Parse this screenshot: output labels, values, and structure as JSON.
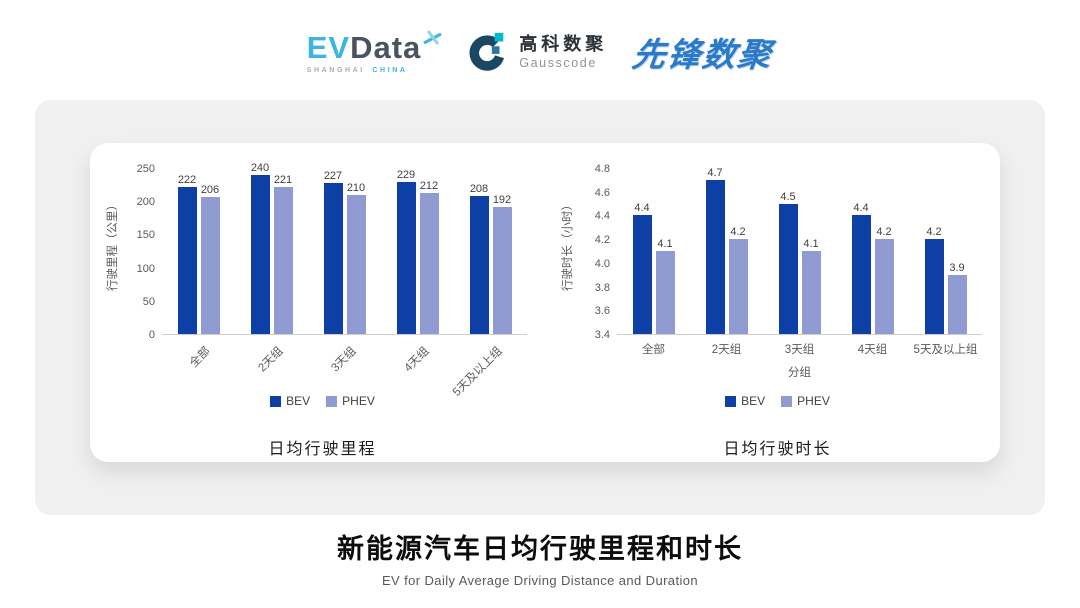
{
  "header": {
    "evdata": {
      "part1": "EV",
      "part2": "Data",
      "sub1": "SHANGHAI",
      "sub2": "CHINA"
    },
    "gausscode": {
      "cn": "高科数聚",
      "en": "Gausscode"
    },
    "xianfeng": {
      "text": "先锋数聚"
    }
  },
  "colors": {
    "bev": "#0E3FA5",
    "phev": "#8F9BD1",
    "axis_text": "#595959",
    "value_text": "#3F3F3F",
    "evdata_cyan": "#3CB4E5",
    "evdata_dark": "#49525F",
    "gauss_dark": "#1C4764",
    "gauss_cyan": "#00BCD0",
    "gauss_mid": "#2E75A8",
    "xianfeng_blue": "#2B79C9"
  },
  "chart_data": [
    {
      "type": "bar",
      "title": "日均行驶里程",
      "ylabel": "行驶里程（公里）",
      "xlabel": "",
      "categories": [
        "全部",
        "2天组",
        "3天组",
        "4天组",
        "5天及以上组"
      ],
      "series": [
        {
          "name": "BEV",
          "values": [
            222,
            240,
            227,
            229,
            208
          ]
        },
        {
          "name": "PHEV",
          "values": [
            206,
            221,
            210,
            212,
            192
          ]
        }
      ],
      "ylim": [
        0,
        250
      ],
      "yticks": [
        0,
        50,
        100,
        150,
        200,
        250
      ],
      "ytick_decimals": 0,
      "value_decimals": 0,
      "x_label_rotation": -45,
      "grid": false,
      "legend_position": "bottom"
    },
    {
      "type": "bar",
      "title": "日均行驶时长",
      "ylabel": "行驶时长（小时）",
      "xlabel": "分组",
      "categories": [
        "全部",
        "2天组",
        "3天组",
        "4天组",
        "5天及以上组"
      ],
      "series": [
        {
          "name": "BEV",
          "values": [
            4.4,
            4.7,
            4.5,
            4.4,
            4.2
          ]
        },
        {
          "name": "PHEV",
          "values": [
            4.1,
            4.2,
            4.1,
            4.2,
            3.9
          ]
        }
      ],
      "ylim": [
        3.4,
        4.8
      ],
      "yticks": [
        3.4,
        3.6,
        3.8,
        4.0,
        4.2,
        4.4,
        4.6,
        4.8
      ],
      "ytick_decimals": 1,
      "value_decimals": 1,
      "x_label_rotation": 0,
      "grid": false,
      "legend_position": "bottom"
    }
  ],
  "footer": {
    "title": "新能源汽车日均行驶里程和时长",
    "subtitle": "EV for Daily Average Driving Distance and Duration"
  }
}
